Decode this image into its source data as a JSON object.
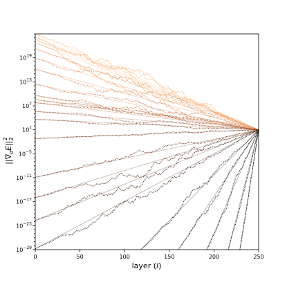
{
  "chart_data": {
    "type": "line",
    "title": "",
    "xlabel": "layer (l)",
    "xlabel_parts": {
      "prefix": "layer (",
      "var": "l",
      "suffix": ")"
    },
    "ylabel": "||∇_σ E||_2^2",
    "ylabel_parts": {
      "left": "||∇",
      "sub": "σ",
      "mid": "E||",
      "sub2": "2",
      "sup": "2"
    },
    "x_scale": "linear",
    "y_scale": "log",
    "xlim": [
      0,
      250
    ],
    "ylim_log10": [
      -29,
      25
    ],
    "x_ticks": [
      0,
      50,
      100,
      150,
      200,
      250
    ],
    "y_ticks_log10": [
      19,
      13,
      7,
      1,
      -5,
      -11,
      -17,
      -23,
      -29
    ],
    "grid": false,
    "legend": "none",
    "convergence_point": {
      "x": 250,
      "log10_y": 1
    },
    "colormap": {
      "low": "#000000",
      "mid": "#a0522d",
      "high": "#f7ae6e"
    },
    "line_style": "dotted",
    "reference_lines": "faint straight reference line per series toward the convergence point",
    "series": [
      {
        "log10_y_at_0": 25.0,
        "end_layer": 250,
        "color": "#fdbf84"
      },
      {
        "log10_y_at_0": 24.2,
        "end_layer": 250,
        "color": "#fcb57a"
      },
      {
        "log10_y_at_0": 23.6,
        "end_layer": 250,
        "color": "#f9ab70"
      },
      {
        "log10_y_at_0": 22.8,
        "end_layer": 250,
        "color": "#f4a066"
      },
      {
        "log10_y_at_0": 21.3,
        "end_layer": 250,
        "color": "#ee965c"
      },
      {
        "log10_y_at_0": 19.0,
        "end_layer": 250,
        "color": "#e78c54"
      },
      {
        "log10_y_at_0": 16.2,
        "end_layer": 250,
        "color": "#de824c"
      },
      {
        "log10_y_at_0": 12.4,
        "end_layer": 250,
        "color": "#d27843"
      },
      {
        "log10_y_at_0": 9.6,
        "end_layer": 250,
        "color": "#c56d3c"
      },
      {
        "log10_y_at_0": 8.6,
        "end_layer": 250,
        "color": "#b86336"
      },
      {
        "log10_y_at_0": 7.8,
        "end_layer": 250,
        "color": "#ab5a30"
      },
      {
        "log10_y_at_0": 5.6,
        "end_layer": 250,
        "color": "#9c502a"
      },
      {
        "log10_y_at_0": 3.6,
        "end_layer": 250,
        "color": "#8c4624"
      },
      {
        "log10_y_at_0": -1.2,
        "end_layer": 250,
        "color": "#7b3c1e"
      },
      {
        "log10_y_at_0": -10.9,
        "end_layer": 250,
        "color": "#6a3319"
      },
      {
        "log10_y_at_0": -16.0,
        "end_layer": 250,
        "color": "#582a14"
      },
      {
        "log10_y_at_0": -21.7,
        "end_layer": 250,
        "color": "#46210f"
      },
      {
        "log10_y_at_0": -28.8,
        "end_layer": 250,
        "color": "#35180b"
      },
      {
        "log10_y_at_0": -29.0,
        "start_layer": 118,
        "end_layer": 250,
        "color": "#241007"
      },
      {
        "log10_y_at_0": -29.0,
        "start_layer": 160,
        "end_layer": 250,
        "color": "#180a04"
      },
      {
        "log10_y_at_0": -29.0,
        "start_layer": 192,
        "end_layer": 250,
        "color": "#0e0502"
      },
      {
        "log10_y_at_0": -29.0,
        "start_layer": 216,
        "end_layer": 250,
        "color": "#050201"
      },
      {
        "log10_y_at_0": -29.0,
        "start_layer": 229,
        "end_layer": 250,
        "color": "#000000"
      }
    ]
  }
}
